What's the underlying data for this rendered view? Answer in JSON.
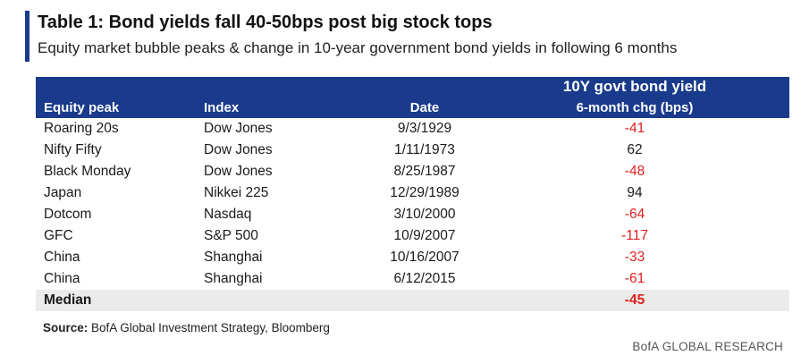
{
  "title": "Table 1: Bond yields fall 40-50bps post big stock tops",
  "subtitle": "Equity market bubble peaks & change in 10-year government bond yields in following 6 months",
  "header": {
    "equity_peak": "Equity peak",
    "index": "Index",
    "date": "Date",
    "yield_top": "10Y govt bond yield",
    "yield_sub": "6-month chg (bps)"
  },
  "rows": [
    {
      "peak": "Roaring 20s",
      "index": "Dow Jones",
      "date": "9/3/1929",
      "chg": "-41"
    },
    {
      "peak": "Nifty Fifty",
      "index": "Dow Jones",
      "date": "1/11/1973",
      "chg": "62"
    },
    {
      "peak": "Black Monday",
      "index": "Dow Jones",
      "date": "8/25/1987",
      "chg": "-48"
    },
    {
      "peak": "Japan",
      "index": "Nikkei 225",
      "date": "12/29/1989",
      "chg": "94"
    },
    {
      "peak": "Dotcom",
      "index": "Nasdaq",
      "date": "3/10/2000",
      "chg": "-64"
    },
    {
      "peak": "GFC",
      "index": "S&P 500",
      "date": "10/9/2007",
      "chg": "-117"
    },
    {
      "peak": "China",
      "index": "Shanghai",
      "date": "10/16/2007",
      "chg": "-33"
    },
    {
      "peak": "China",
      "index": "Shanghai",
      "date": "6/12/2015",
      "chg": "-61"
    }
  ],
  "median": {
    "label": "Median",
    "chg": "-45"
  },
  "source": {
    "label": "Source:",
    "text": " BofA Global Investment Strategy, Bloomberg"
  },
  "brand": "BofA GLOBAL RESEARCH",
  "colors": {
    "header_bg": "#1a3b8c",
    "negative": "#e02020",
    "median_bg": "#ebebeb"
  }
}
